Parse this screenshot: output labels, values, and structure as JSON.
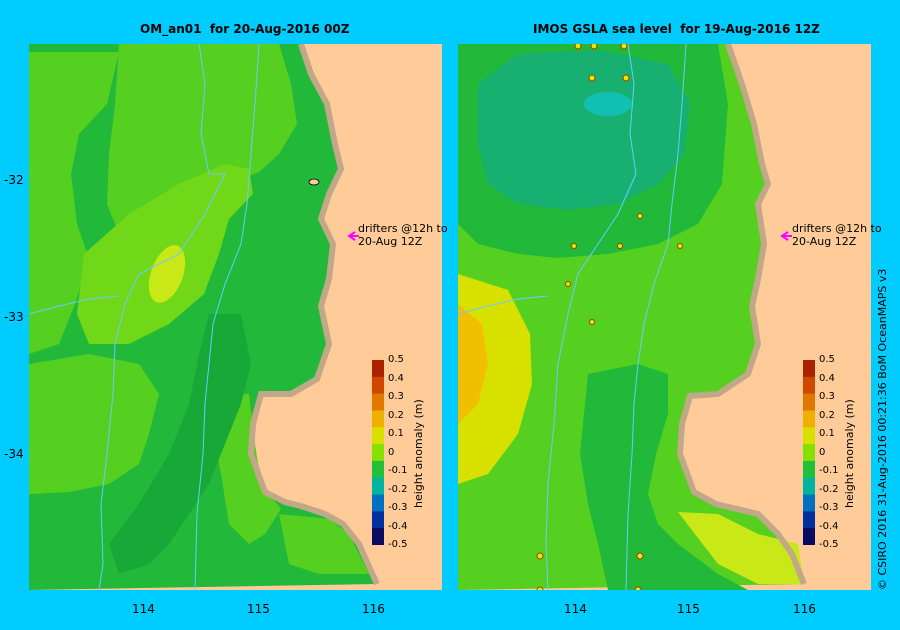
{
  "panels": [
    {
      "title": "OM_an01  for 20-Aug-2016 00Z",
      "note": "drifters @12h to\n20-Aug 12Z",
      "colorbar_label": "height anomaly (m)"
    },
    {
      "title": "IMOS GSLA sea level  for 19-Aug-2016 12Z",
      "note": "drifters @12h to\n20-Aug 12Z",
      "colorbar_label": "height anomaly (m)"
    }
  ],
  "colorbar": {
    "ticks": [
      "0.5",
      "0.4",
      "0.3",
      "0.2",
      "0.1",
      "0",
      "-0.1",
      "-0.2",
      "-0.3",
      "-0.4",
      "-0.5"
    ],
    "colors": [
      "#aa2200",
      "#d04800",
      "#e07800",
      "#f0b000",
      "#d8e000",
      "#88e000",
      "#22c03a",
      "#00b4a0",
      "#0070c0",
      "#0030a0",
      "#0a0a60"
    ]
  },
  "axes": {
    "lat_labels": [
      "-32",
      "-33",
      "-34"
    ],
    "lon_labels": [
      "114",
      "115",
      "116"
    ]
  },
  "colors": {
    "background": "#00ccff",
    "land": "#ffcc99",
    "coast": "#c0a888",
    "drifter_arrow": "#ff00ff"
  },
  "credit": "© CSIRO 2016   31-Aug-2016 00:21:36 BoM OceanMAPS v3"
}
